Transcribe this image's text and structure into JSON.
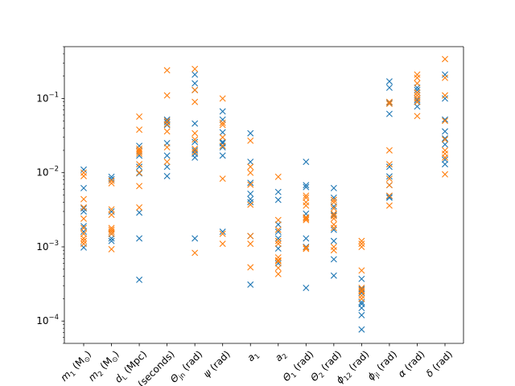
{
  "chart_data": {
    "type": "scatter",
    "marker": "x",
    "yscale": "log",
    "ylim": [
      5e-05,
      0.5
    ],
    "yticks": [
      {
        "value": 0.0001,
        "base": "10",
        "exp": "−4"
      },
      {
        "value": 0.001,
        "base": "10",
        "exp": "−3"
      },
      {
        "value": 0.01,
        "base": "10",
        "exp": "−2"
      },
      {
        "value": 0.1,
        "base": "10",
        "exp": "−1"
      }
    ],
    "grid": false,
    "categories": [
      {
        "main": "m",
        "sub": "1",
        "rest": " (M",
        "sub2": "⊙",
        "tail": ")"
      },
      {
        "main": "m",
        "sub": "2",
        "rest": " (M",
        "sub2": "⊙",
        "tail": ")"
      },
      {
        "main": "d",
        "sub": "L",
        "rest": " (Mpc)",
        "sub2": "",
        "tail": ""
      },
      {
        "main": "t (seconds)",
        "sub": "",
        "rest": "",
        "sub2": "",
        "tail": ""
      },
      {
        "main": "Θ",
        "sub": "jn",
        "rest": " (rad)",
        "sub2": "",
        "tail": ""
      },
      {
        "main": "ψ",
        "sub": "",
        "rest": " (rad)",
        "sub2": "",
        "tail": ""
      },
      {
        "main": "a",
        "sub": "1",
        "rest": "",
        "sub2": "",
        "tail": ""
      },
      {
        "main": "a",
        "sub": "2",
        "rest": "",
        "sub2": "",
        "tail": ""
      },
      {
        "main": "Θ",
        "sub": "1",
        "rest": " (rad)",
        "sub2": "",
        "tail": ""
      },
      {
        "main": "Θ",
        "sub": "2",
        "rest": " (rad)",
        "sub2": "",
        "tail": ""
      },
      {
        "main": "ϕ",
        "sub": "12",
        "rest": " (rad)",
        "sub2": "",
        "tail": ""
      },
      {
        "main": "ϕ",
        "sub": "jl",
        "rest": " (rad)",
        "sub2": "",
        "tail": ""
      },
      {
        "main": "α",
        "sub": "",
        "rest": " (rad)",
        "sub2": "",
        "tail": ""
      },
      {
        "main": "δ",
        "sub": "",
        "rest": " (rad)",
        "sub2": "",
        "tail": ""
      }
    ],
    "series": [
      {
        "color": "#1f77b4",
        "values": [
          [
            0.011,
            0.0062,
            0.0033,
            0.003,
            0.0019,
            0.0016,
            0.00098
          ],
          [
            0.0088,
            0.0082,
            0.003,
            0.0015,
            0.0013,
            0.0012
          ],
          [
            0.023,
            0.017,
            0.012,
            0.0098,
            0.0029,
            0.0013,
            0.00036
          ],
          [
            0.052,
            0.048,
            0.044,
            0.025,
            0.017,
            0.012,
            0.009
          ],
          [
            0.21,
            0.16,
            0.13,
            0.046,
            0.026,
            0.02,
            0.018,
            0.016,
            0.0013
          ],
          [
            0.067,
            0.052,
            0.035,
            0.026,
            0.025,
            0.022,
            0.017,
            0.0016
          ],
          [
            0.034,
            0.014,
            0.0073,
            0.0052,
            0.0044,
            0.004,
            0.0014,
            0.00031
          ],
          [
            0.0055,
            0.0043,
            0.002,
            0.0016,
            0.0013,
            0.00095,
            0.0006
          ],
          [
            0.014,
            0.0068,
            0.0064,
            0.0028,
            0.0025,
            0.0013,
            0.001,
            0.00028
          ],
          [
            0.0062,
            0.0046,
            0.0035,
            0.0027,
            0.0017,
            0.0012,
            0.00068,
            0.00041
          ],
          [
            0.00037,
            0.00027,
            0.00024,
            0.00018,
            0.00017,
            0.00015,
            0.00012,
            7.7e-05
          ],
          [
            0.17,
            0.14,
            0.088,
            0.062,
            0.012,
            0.0089,
            0.0068,
            0.0048,
            0.0046
          ],
          [
            0.14,
            0.13,
            0.12,
            0.1,
            0.095,
            0.09,
            0.078
          ],
          [
            0.21,
            0.1,
            0.052,
            0.036,
            0.029,
            0.024,
            0.015,
            0.013
          ]
        ]
      },
      {
        "color": "#ff7f0e",
        "values": [
          [
            0.01,
            0.009,
            0.0044,
            0.0034,
            0.0024,
            0.0018,
            0.0015,
            0.0013,
            0.0012,
            0.0011
          ],
          [
            0.0078,
            0.0072,
            0.0032,
            0.0027,
            0.0018,
            0.0017,
            0.0016,
            0.0015,
            0.00093
          ],
          [
            0.057,
            0.038,
            0.021,
            0.02,
            0.019,
            0.018,
            0.013,
            0.01,
            0.0066,
            0.0034
          ],
          [
            0.24,
            0.11,
            0.05,
            0.045,
            0.036,
            0.022,
            0.014
          ],
          [
            0.25,
            0.13,
            0.09,
            0.034,
            0.028,
            0.021,
            0.019,
            0.00083
          ],
          [
            0.1,
            0.047,
            0.044,
            0.03,
            0.023,
            0.0083,
            0.0015,
            0.0011
          ],
          [
            0.027,
            0.012,
            0.01,
            0.0069,
            0.0037,
            0.0014,
            0.0011,
            0.00053
          ],
          [
            0.0088,
            0.0023,
            0.0017,
            0.0012,
            0.0011,
            0.00072,
            0.00066,
            0.00064,
            0.00052,
            0.00043
          ],
          [
            0.0049,
            0.0046,
            0.004,
            0.0036,
            0.0025,
            0.0024,
            0.0023,
            0.00098,
            0.00094
          ],
          [
            0.0043,
            0.004,
            0.0033,
            0.0028,
            0.0026,
            0.0024,
            0.002,
            0.0018,
            0.001,
            0.0009
          ],
          [
            0.0012,
            0.0011,
            0.001,
            0.00048,
            0.00028,
            0.00026,
            0.00025,
            0.00022,
            0.0002
          ],
          [
            0.09,
            0.085,
            0.02,
            0.013,
            0.0083,
            0.0068,
            0.0049,
            0.0036
          ],
          [
            0.21,
            0.19,
            0.16,
            0.12,
            0.11,
            0.1,
            0.09,
            0.058
          ],
          [
            0.34,
            0.19,
            0.11,
            0.05,
            0.028,
            0.02,
            0.018,
            0.016,
            0.0095
          ]
        ]
      }
    ]
  }
}
